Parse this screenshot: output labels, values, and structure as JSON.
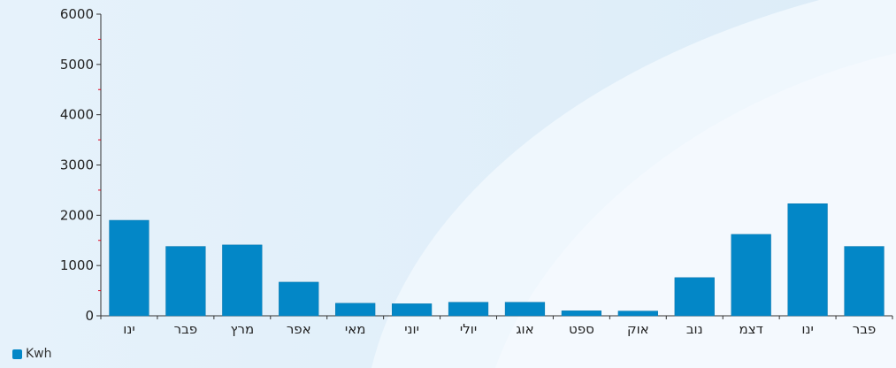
{
  "chart_data": {
    "type": "bar",
    "categories": [
      "ינו",
      "פבר",
      "מרץ",
      "אפר",
      "מאי",
      "יוני",
      "יולי",
      "אוג",
      "ספט",
      "אוק",
      "נוב",
      "דצמ",
      "ינו",
      "פבר"
    ],
    "series": [
      {
        "name": "Kwh",
        "values": [
          1900,
          1380,
          1410,
          670,
          250,
          240,
          270,
          270,
          100,
          95,
          760,
          1620,
          2230,
          1380
        ]
      }
    ],
    "ylim": [
      0,
      6000
    ],
    "yticks": [
      0,
      1000,
      2000,
      3000,
      4000,
      5000,
      6000
    ],
    "legend_position": "bottom-left",
    "grid": false,
    "colors": {
      "bar": "#0387c7",
      "minor_tick": "#e0001b",
      "axis": "#333333"
    }
  }
}
